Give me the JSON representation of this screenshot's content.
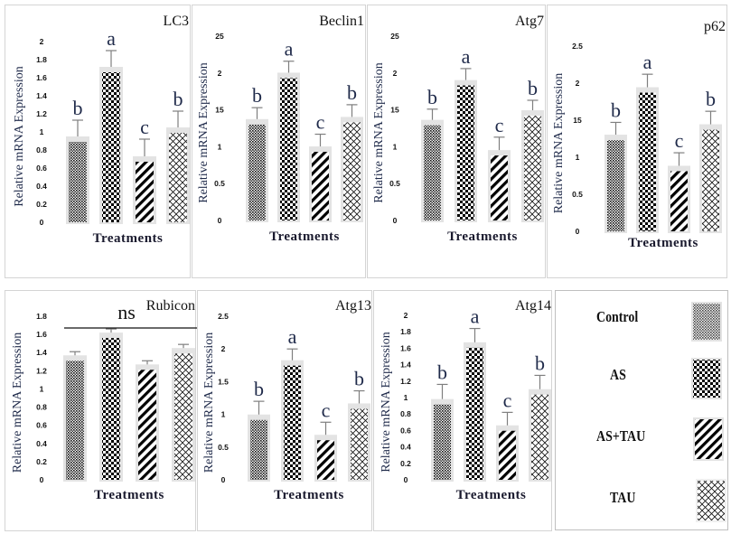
{
  "treatments": [
    "Control",
    "AS",
    "AS+TAU",
    "TAU"
  ],
  "legend": {
    "items": [
      {
        "label": "Control",
        "pattern": "dots"
      },
      {
        "label": "AS",
        "pattern": "checker"
      },
      {
        "label": "AS+TAU",
        "pattern": "diagonal"
      },
      {
        "label": "TAU",
        "pattern": "crosshatch"
      }
    ]
  },
  "colors": {
    "bar_shadow": "#e3e3e3",
    "letter_label": "#1f2a4a",
    "error_bar": "#7f7f7f",
    "axis_label": "#1f2a4a",
    "tick_label": "#111111"
  },
  "chart_data": [
    {
      "type": "bar",
      "title": "LC3",
      "xlabel": "Treatments",
      "ylabel": "Relative mRNA Expression",
      "categories": [
        "Control",
        "AS",
        "AS+TAU",
        "TAU"
      ],
      "values": [
        0.93,
        1.7,
        0.71,
        1.03
      ],
      "error": [
        0.2,
        0.2,
        0.21,
        0.2
      ],
      "significance": [
        "b",
        "a",
        "c",
        "b"
      ],
      "yticks": [
        "0",
        "0.2",
        "0.4",
        "0.6",
        "0.8",
        "1",
        "1.2",
        "1.4",
        "1.6",
        "1.8",
        "2"
      ],
      "ylim": [
        0,
        2
      ],
      "grid": false
    },
    {
      "type": "bar",
      "title": "Beclin1",
      "xlabel": "Treatments",
      "ylabel": "Relative mRNA Expression",
      "categories": [
        "Control",
        "AS",
        "AS+TAU",
        "TAU"
      ],
      "values": [
        1.35,
        1.98,
        0.98,
        1.38
      ],
      "error": [
        0.18,
        0.18,
        0.19,
        0.19
      ],
      "significance": [
        "b",
        "a",
        "c",
        "b"
      ],
      "yticks": [
        "0",
        "0.5",
        "1",
        "15",
        "2",
        "25"
      ],
      "ylim": [
        0,
        2.5
      ],
      "grid": false
    },
    {
      "type": "bar",
      "title": "Atg7",
      "xlabel": "Treatments",
      "ylabel": "Relative mRNA Expression",
      "categories": [
        "Control",
        "AS",
        "AS+TAU",
        "TAU"
      ],
      "values": [
        1.34,
        1.88,
        0.93,
        1.47
      ],
      "error": [
        0.17,
        0.18,
        0.2,
        0.16
      ],
      "significance": [
        "b",
        "a",
        "c",
        "b"
      ],
      "yticks": [
        "0",
        "0.5",
        "1",
        "15",
        "2",
        "25"
      ],
      "ylim": [
        0,
        2.5
      ],
      "grid": false
    },
    {
      "type": "bar",
      "title": "p62",
      "xlabel": "Treatments",
      "ylabel": "Relative mRNA Expression",
      "categories": [
        "Control",
        "AS",
        "AS+TAU",
        "TAU"
      ],
      "values": [
        1.28,
        1.92,
        0.86,
        1.42
      ],
      "error": [
        0.19,
        0.2,
        0.2,
        0.2
      ],
      "significance": [
        "b",
        "a",
        "c",
        "b"
      ],
      "yticks": [
        "0",
        "0.5",
        "1",
        "15",
        "2",
        "2.5"
      ],
      "ylim": [
        0,
        2.5
      ],
      "grid": false
    },
    {
      "type": "bar",
      "title": "Rubicon",
      "xlabel": "Treatments",
      "ylabel": "Relative mRNA Expression",
      "categories": [
        "Control",
        "AS",
        "AS+TAU",
        "TAU"
      ],
      "values": [
        1.35,
        1.6,
        1.25,
        1.43
      ],
      "error": [
        0.06,
        0.06,
        0.06,
        0.06
      ],
      "significance_overall": "ns",
      "significance": [
        "",
        "",
        "",
        ""
      ],
      "yticks": [
        "0",
        "0.2",
        "0.4",
        "0.6",
        "0.8",
        "1",
        "1.2",
        "1.4",
        "1.6",
        "1.8"
      ],
      "ylim": [
        0,
        1.8
      ],
      "grid": false
    },
    {
      "type": "bar",
      "title": "Atg13",
      "xlabel": "Treatments",
      "ylabel": "Relative mRNA Expression",
      "categories": [
        "Control",
        "AS",
        "AS+TAU",
        "TAU"
      ],
      "values": [
        0.97,
        1.8,
        0.66,
        1.14
      ],
      "error": [
        0.23,
        0.2,
        0.22,
        0.22
      ],
      "significance": [
        "b",
        "a",
        "c",
        "b"
      ],
      "yticks": [
        "0",
        "0.5",
        "1",
        "1.5",
        "2",
        "2.5"
      ],
      "ylim": [
        0,
        2.5
      ],
      "grid": false
    },
    {
      "type": "bar",
      "title": "Atg14",
      "xlabel": "Treatments",
      "ylabel": "Relative mRNA Expression",
      "categories": [
        "Control",
        "AS",
        "AS+TAU",
        "TAU"
      ],
      "values": [
        0.96,
        1.65,
        0.64,
        1.08
      ],
      "error": [
        0.2,
        0.19,
        0.18,
        0.19
      ],
      "significance": [
        "b",
        "a",
        "c",
        "b"
      ],
      "yticks": [
        "0",
        "0.2",
        "0.4",
        "0.6",
        "0.8",
        "1",
        "1.2",
        "1.4",
        "1.6",
        "1.8",
        "2"
      ],
      "ylim": [
        0,
        2
      ],
      "grid": false
    }
  ]
}
